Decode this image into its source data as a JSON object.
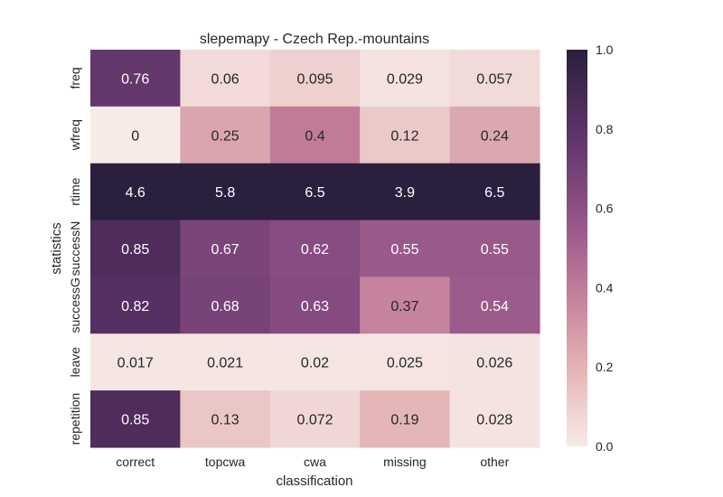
{
  "chart_data": {
    "type": "heatmap",
    "title": "slepemapy - Czech Rep.-mountains",
    "xlabel": "classification",
    "ylabel": "statistics",
    "x_categories": [
      "correct",
      "topcwa",
      "cwa",
      "missing",
      "other"
    ],
    "y_categories": [
      "freq",
      "wfreq",
      "rtime",
      "successN",
      "successG",
      "leave",
      "repetition"
    ],
    "values": [
      [
        "0.76",
        "0.06",
        "0.095",
        "0.029",
        "0.057"
      ],
      [
        "0",
        "0.25",
        "0.4",
        "0.12",
        "0.24"
      ],
      [
        "4.6",
        "5.8",
        "6.5",
        "3.9",
        "6.5"
      ],
      [
        "0.85",
        "0.67",
        "0.62",
        "0.55",
        "0.55"
      ],
      [
        "0.82",
        "0.68",
        "0.63",
        "0.37",
        "0.54"
      ],
      [
        "0.017",
        "0.021",
        "0.02",
        "0.025",
        "0.026"
      ],
      [
        "0.85",
        "0.13",
        "0.072",
        "0.19",
        "0.028"
      ]
    ],
    "colorbar": {
      "range": [
        0,
        1
      ],
      "ticks": [
        "0.0",
        "0.2",
        "0.4",
        "0.6",
        "0.8",
        "1.0"
      ],
      "colors": [
        "#f7ebe8",
        "#e3b3b4",
        "#c07b99",
        "#8c4f85",
        "#5a3266",
        "#2b1f3e"
      ]
    }
  }
}
